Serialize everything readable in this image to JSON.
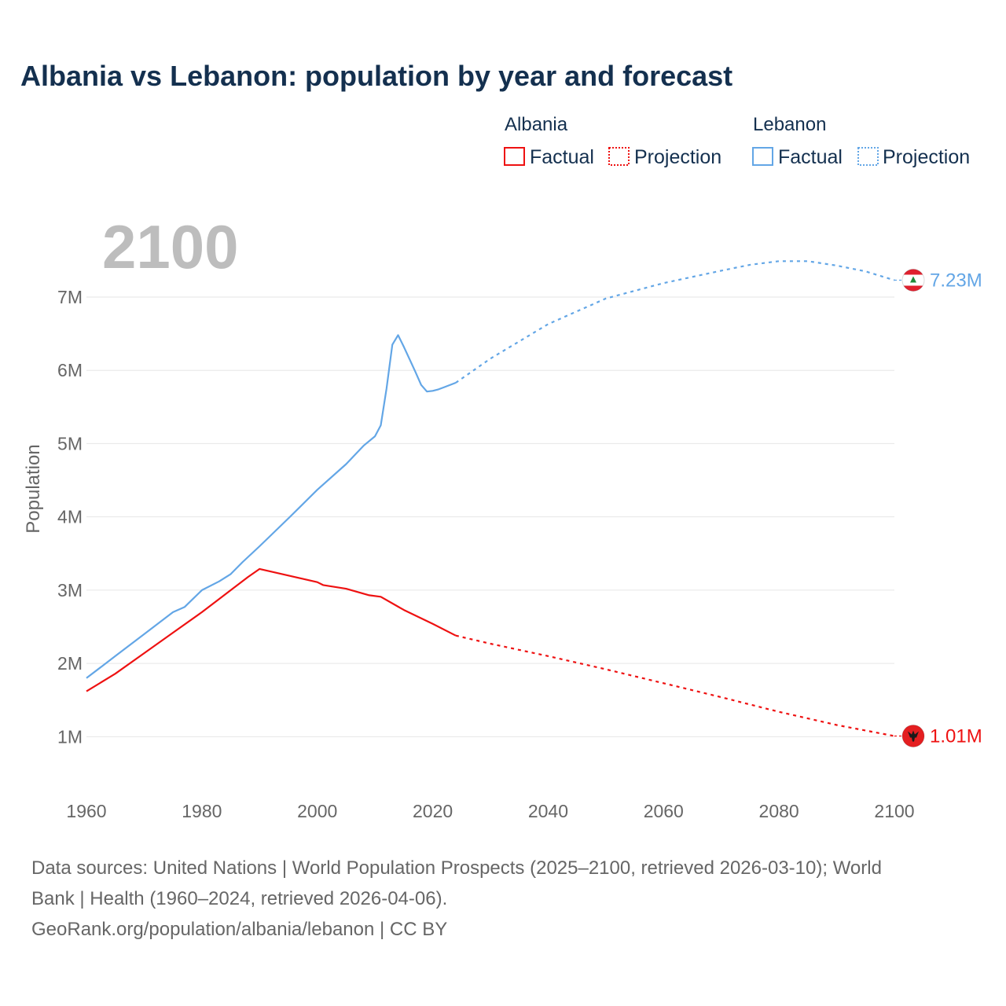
{
  "chart_data": {
    "type": "line",
    "title": "Albania vs Lebanon: population by year and forecast",
    "ylabel": "Population",
    "xlabel": "",
    "xlim": [
      1960,
      2100
    ],
    "ylim": [
      0.2,
      7.6
    ],
    "grid": true,
    "year_label": "2100",
    "x_ticks": [
      {
        "value": 1960,
        "label": "1960"
      },
      {
        "value": 1980,
        "label": "1980"
      },
      {
        "value": 2000,
        "label": "2000"
      },
      {
        "value": 2020,
        "label": "2020"
      },
      {
        "value": 2040,
        "label": "2040"
      },
      {
        "value": 2060,
        "label": "2060"
      },
      {
        "value": 2080,
        "label": "2080"
      },
      {
        "value": 2100,
        "label": "2100"
      }
    ],
    "y_ticks": [
      {
        "value": 1,
        "label": "1M"
      },
      {
        "value": 2,
        "label": "2M"
      },
      {
        "value": 3,
        "label": "3M"
      },
      {
        "value": 4,
        "label": "4M"
      },
      {
        "value": 5,
        "label": "5M"
      },
      {
        "value": 6,
        "label": "6M"
      },
      {
        "value": 7,
        "label": "7M"
      }
    ],
    "legend": {
      "placement": "top-right",
      "groups": [
        {
          "name": "Albania",
          "factual_label": "Factual",
          "projection_label": "Projection",
          "color": "#ee1111"
        },
        {
          "name": "Lebanon",
          "factual_label": "Factual",
          "projection_label": "Projection",
          "color": "#63a6e6"
        }
      ]
    },
    "series": [
      {
        "name": "Albania",
        "color": "#ee1111",
        "end_label": "1.01M",
        "flag": "albania-flag",
        "factual": {
          "x": [
            1960,
            1965,
            1970,
            1975,
            1980,
            1985,
            1988,
            1990,
            1995,
            2000,
            2001,
            2005,
            2009,
            2011,
            2015,
            2020,
            2024
          ],
          "y": [
            1.62,
            1.86,
            2.14,
            2.42,
            2.7,
            3.0,
            3.18,
            3.29,
            3.2,
            3.11,
            3.07,
            3.02,
            2.93,
            2.91,
            2.73,
            2.54,
            2.38
          ]
        },
        "projection": {
          "x": [
            2024,
            2030,
            2040,
            2050,
            2060,
            2070,
            2080,
            2090,
            2100
          ],
          "y": [
            2.38,
            2.27,
            2.1,
            1.92,
            1.73,
            1.54,
            1.34,
            1.16,
            1.01
          ]
        }
      },
      {
        "name": "Lebanon",
        "color": "#63a6e6",
        "end_label": "7.23M",
        "flag": "lebanon-flag",
        "factual": {
          "x": [
            1960,
            1965,
            1970,
            1975,
            1977,
            1980,
            1983,
            1985,
            1987,
            1990,
            1995,
            2000,
            2005,
            2008,
            2010,
            2011,
            2012,
            2013,
            2014,
            2015,
            2016,
            2017,
            2018,
            2019,
            2020,
            2021,
            2022,
            2024
          ],
          "y": [
            1.8,
            2.1,
            2.4,
            2.7,
            2.77,
            3.0,
            3.12,
            3.22,
            3.38,
            3.6,
            3.98,
            4.37,
            4.72,
            4.97,
            5.1,
            5.25,
            5.75,
            6.35,
            6.48,
            6.32,
            6.15,
            5.98,
            5.8,
            5.71,
            5.72,
            5.74,
            5.77,
            5.83
          ]
        },
        "projection": {
          "x": [
            2024,
            2030,
            2040,
            2050,
            2060,
            2070,
            2075,
            2080,
            2085,
            2090,
            2095,
            2100
          ],
          "y": [
            5.83,
            6.16,
            6.63,
            6.98,
            7.19,
            7.36,
            7.44,
            7.49,
            7.49,
            7.43,
            7.35,
            7.23
          ]
        }
      }
    ],
    "source_lines": [
      "Data sources: United Nations | World Population Prospects (2025–2100, retrieved 2026-03-10); World",
      "Bank | Health (1960–2024, retrieved 2026-04-06).",
      "GeoRank.org/population/albania/lebanon | CC BY"
    ]
  }
}
